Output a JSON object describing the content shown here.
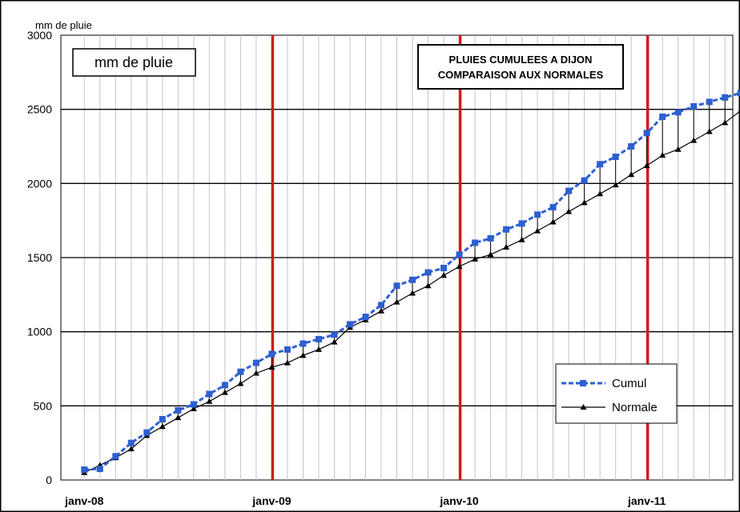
{
  "chart_data": {
    "type": "line",
    "title": "PLUIES CUMULEES A DIJON",
    "subtitle": "COMPARAISON AUX NORMALES",
    "ylabel": "mm de pluie",
    "box_label": "mm de pluie",
    "xlabel": "",
    "ylim": [
      0,
      3000
    ],
    "yticks": [
      0,
      500,
      1000,
      1500,
      2000,
      2500,
      3000
    ],
    "x_tick_labels": [
      "janv-08",
      "janv-09",
      "janv-10",
      "janv-11"
    ],
    "x_unit": "months since janv-08",
    "xlim": [
      -1.5,
      41.5
    ],
    "year_markers": [
      12,
      24,
      36
    ],
    "grid": true,
    "legend_position": "bottom-right",
    "series": [
      {
        "name": "Cumul",
        "color": "#2E5FD0",
        "marker": "square",
        "values": [
          70,
          75,
          160,
          250,
          320,
          410,
          470,
          510,
          580,
          640,
          730,
          790,
          850,
          880,
          920,
          950,
          980,
          1050,
          1100,
          1180,
          1310,
          1350,
          1400,
          1430,
          1520,
          1600,
          1630,
          1690,
          1730,
          1790,
          1840,
          1950,
          2020,
          2130,
          2180,
          2250,
          2340,
          2450,
          2480,
          2520,
          2550,
          2580,
          2610
        ]
      },
      {
        "name": "Normale",
        "color": "#000000",
        "marker": "triangle",
        "values": [
          50,
          100,
          150,
          210,
          300,
          360,
          420,
          480,
          530,
          590,
          650,
          720,
          760,
          790,
          840,
          880,
          930,
          1030,
          1080,
          1140,
          1200,
          1260,
          1310,
          1380,
          1440,
          1490,
          1520,
          1570,
          1620,
          1680,
          1740,
          1810,
          1870,
          1930,
          1990,
          2060,
          2120,
          2190,
          2230,
          2290,
          2350,
          2410,
          2490
        ]
      }
    ]
  }
}
